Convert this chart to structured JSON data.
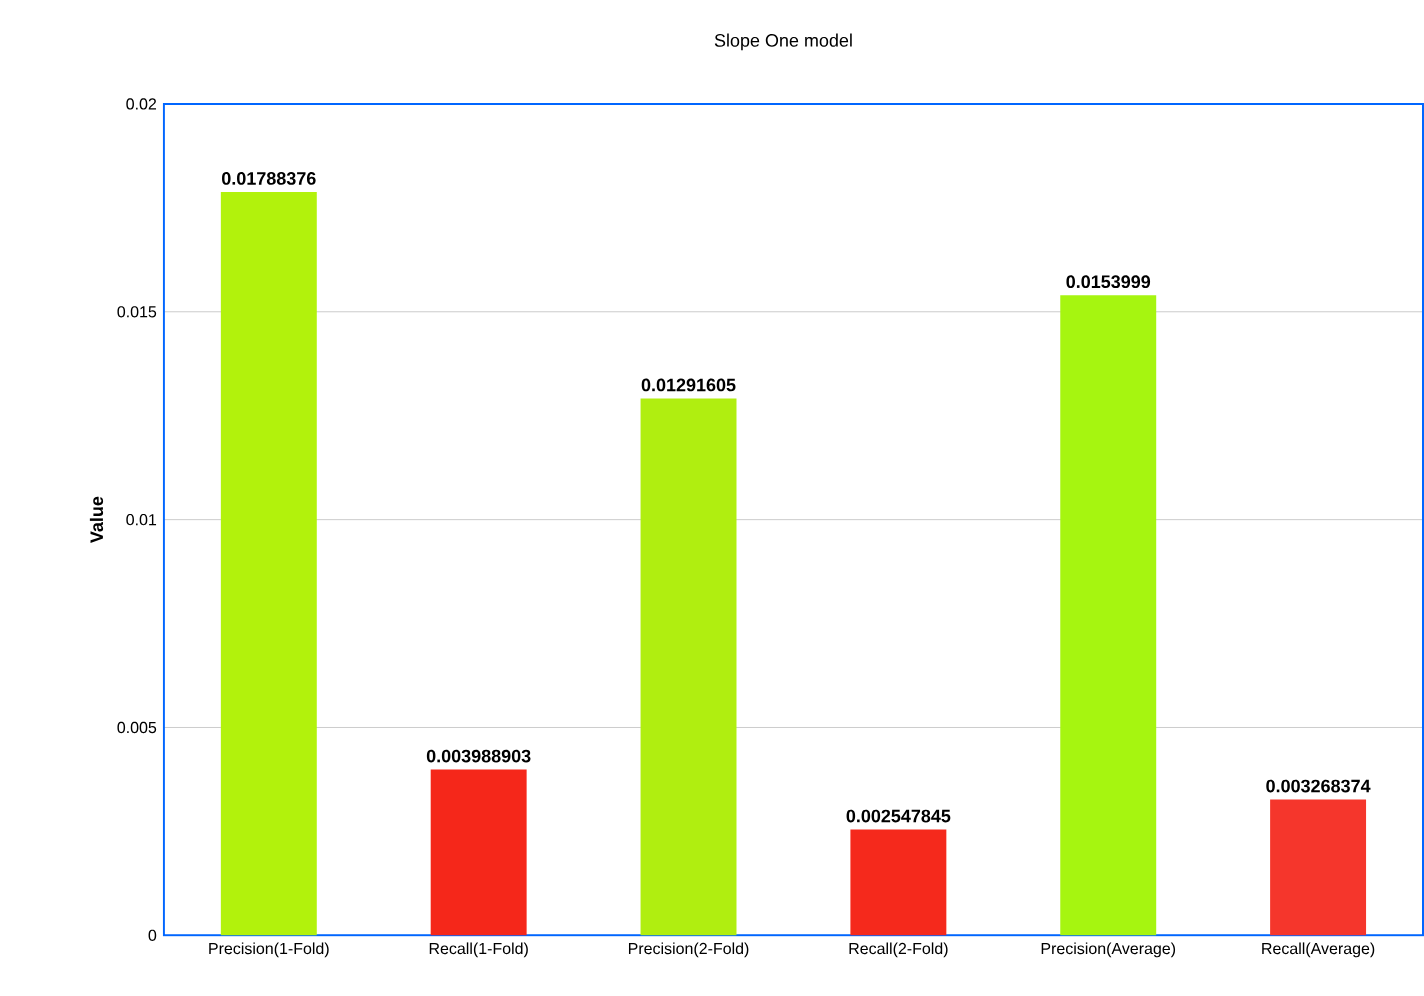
{
  "chart_data": {
    "type": "bar",
    "title": "Slope One model",
    "ylabel": "Value",
    "categories": [
      "Precision(1-Fold)",
      "Recall(1-Fold)",
      "Precision(2-Fold)",
      "Recall(2-Fold)",
      "Precision(Average)",
      "Recall(Average)"
    ],
    "values": [
      0.01788376,
      0.003988903,
      0.01291605,
      0.002547845,
      0.0153999,
      0.003268374
    ],
    "colors": [
      "#b2f20c",
      "#f5271a",
      "#b0ee10",
      "#f5291c",
      "#a6f510",
      "#f5362c"
    ],
    "ylim": [
      0,
      0.02
    ],
    "yticks": [
      0,
      0.005,
      0.01,
      0.015,
      0.02
    ],
    "grid": "y",
    "data_labels": true
  }
}
